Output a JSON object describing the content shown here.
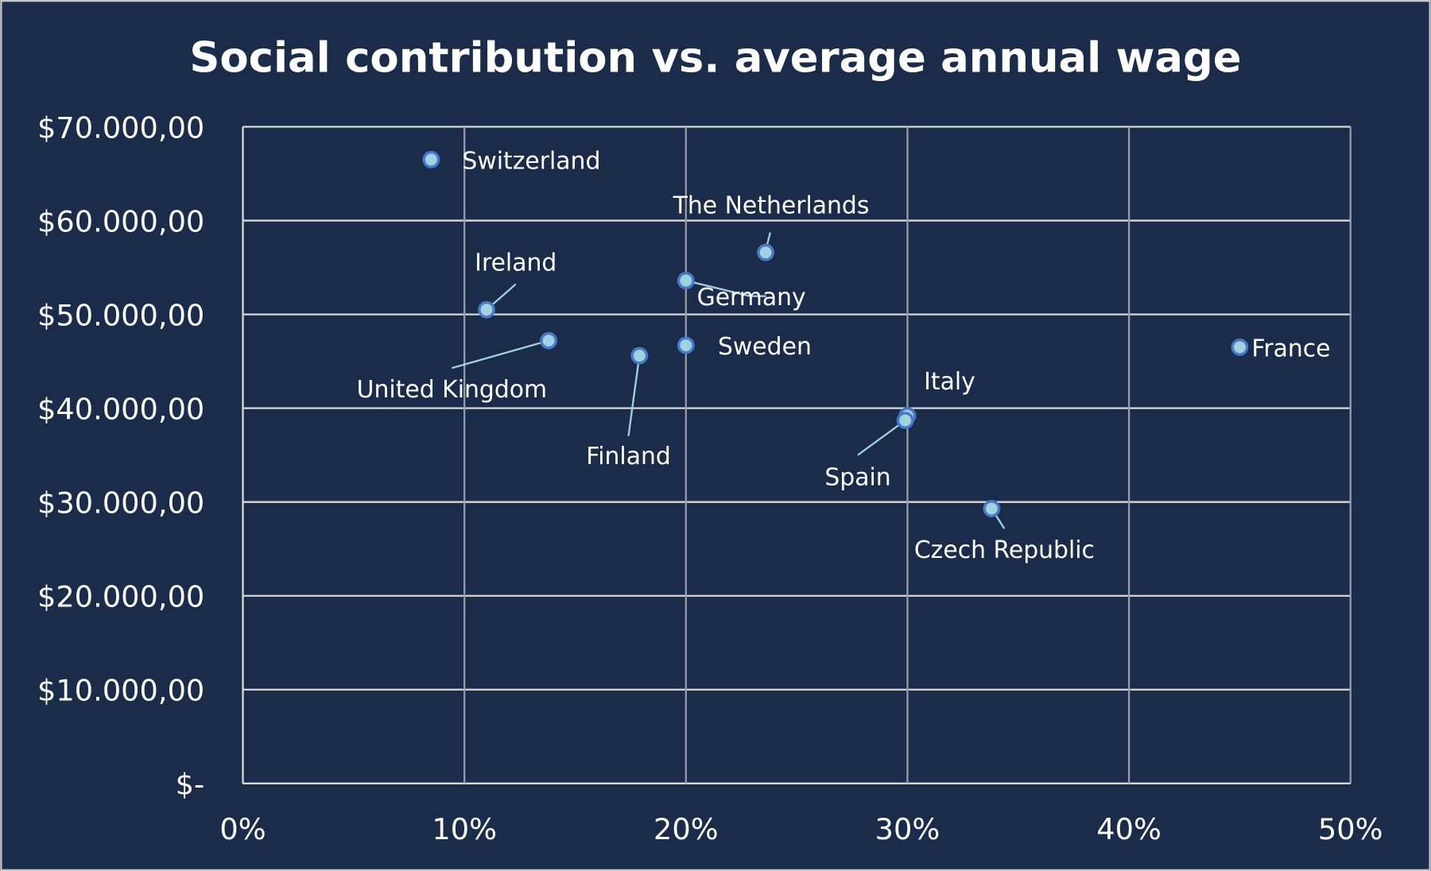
{
  "chart_data": {
    "type": "scatter",
    "title": "Social contribution vs. average annual wage",
    "xlabel": "",
    "ylabel": "",
    "xlim": [
      0,
      0.5
    ],
    "ylim": [
      0,
      70000
    ],
    "grid": true,
    "x_ticks": [
      {
        "value": 0,
        "label": "0%"
      },
      {
        "value": 0.1,
        "label": "10%"
      },
      {
        "value": 0.2,
        "label": "20%"
      },
      {
        "value": 0.3,
        "label": "30%"
      },
      {
        "value": 0.4,
        "label": "40%"
      },
      {
        "value": 0.5,
        "label": "50%"
      }
    ],
    "y_ticks": [
      {
        "value": 0,
        "label": "$-"
      },
      {
        "value": 10000,
        "label": "$10.000,00"
      },
      {
        "value": 20000,
        "label": "$20.000,00"
      },
      {
        "value": 30000,
        "label": "$30.000,00"
      },
      {
        "value": 40000,
        "label": "$40.000,00"
      },
      {
        "value": 50000,
        "label": "$50.000,00"
      },
      {
        "value": 60000,
        "label": "$60.000,00"
      },
      {
        "value": 70000,
        "label": "$70.000,00"
      }
    ],
    "points": [
      {
        "label": "Switzerland",
        "x": 0.085,
        "y": 66500
      },
      {
        "label": "The Netherlands",
        "x": 0.236,
        "y": 56600
      },
      {
        "label": "Germany",
        "x": 0.2,
        "y": 53600
      },
      {
        "label": "Ireland",
        "x": 0.11,
        "y": 50500
      },
      {
        "label": "United Kingdom",
        "x": 0.138,
        "y": 47200
      },
      {
        "label": "Sweden",
        "x": 0.2,
        "y": 46700
      },
      {
        "label": "France",
        "x": 0.45,
        "y": 46500
      },
      {
        "label": "Finland",
        "x": 0.179,
        "y": 45600
      },
      {
        "label": "Italy",
        "x": 0.3,
        "y": 39200
      },
      {
        "label": "Spain",
        "x": 0.299,
        "y": 38700
      },
      {
        "label": "Czech Republic",
        "x": 0.338,
        "y": 29300
      }
    ],
    "colors": {
      "background": "#1a2c4a",
      "point_fill": "#9fd3e0",
      "point_stroke": "#4a78c8",
      "leader_line": "#9fd3e0",
      "text": "#ffffff"
    }
  }
}
